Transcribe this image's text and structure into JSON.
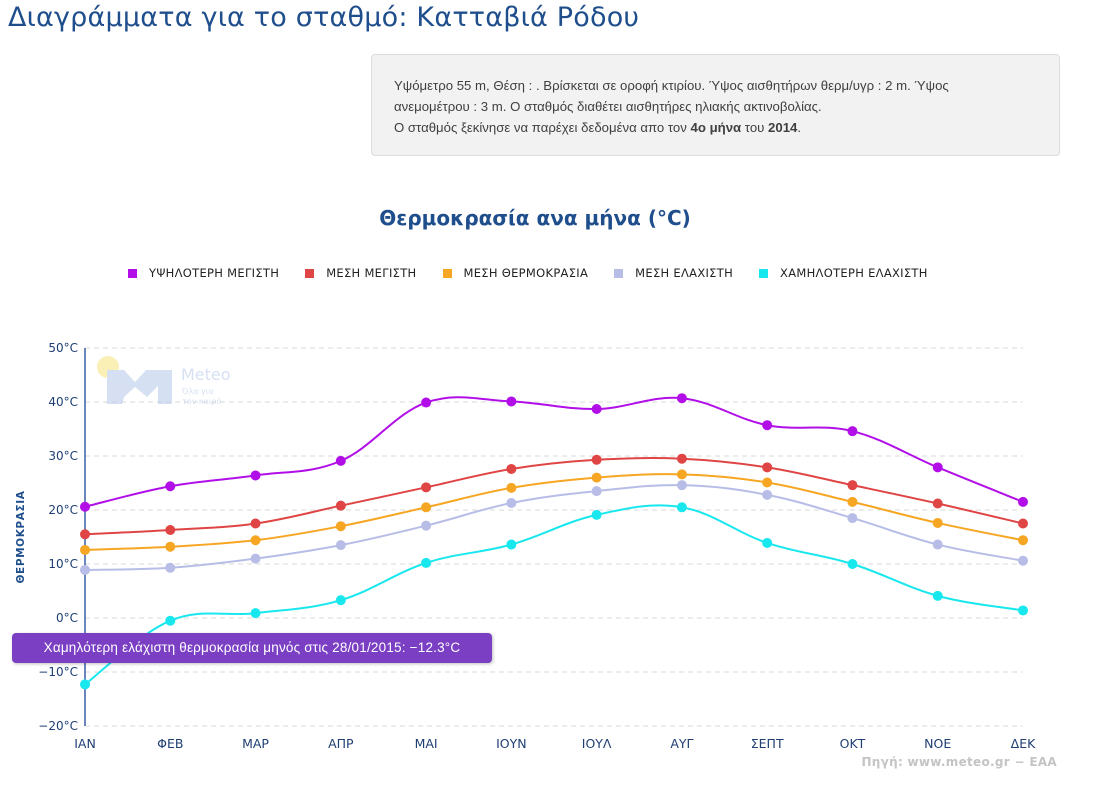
{
  "page": {
    "title": "Διαγράμματα για το σταθμό: Κατταβιά Ρόδου"
  },
  "info": {
    "line1": "Υψόμετρο 55 m, Θέση : . Βρίσκεται σε οροφή κτιρίου. Ύψος αισθητήρων θερμ/υγρ : 2 m. Ύψος",
    "line2": "ανεμομέτρου : 3 m. Ο σταθμός διαθέτει αισθητήρες ηλιακής ακτινοβολίας.",
    "line3_prefix": "Ο σταθμός ξεκίνησε να παρέχει δεδομένα απο τον ",
    "line3_month": "4ο μήνα",
    "line3_mid": " του ",
    "line3_year": "2014",
    "line3_suffix": "."
  },
  "logo": {
    "name": "Meteo",
    "tagline_1": "Όλα για",
    "tagline_2": "τον καιρό"
  },
  "tooltip": {
    "text": "Χαμηλότερη ελάχιστη θερμοκρασία μηνός στις 28/01/2015: −12.3°C"
  },
  "source": "Πηγή: www.meteo.gr − ΕΑΑ",
  "chart_data": {
    "type": "line",
    "title": "Θερμοκρασία ανα μήνα (°C)",
    "xlabel": "",
    "ylabel": "ΘΕΡΜΟΚΡΑΣΙΑ",
    "ylim": [
      -20,
      50
    ],
    "yticks": [
      -20,
      -10,
      0,
      10,
      20,
      30,
      40,
      50
    ],
    "y_unit": "°C",
    "grid": true,
    "legend_position": "top",
    "categories": [
      "ΙΑΝ",
      "ΦΕΒ",
      "ΜΑΡ",
      "ΑΠΡ",
      "ΜΑΙ",
      "ΙΟΥΝ",
      "ΙΟΥΛ",
      "ΑΥΓ",
      "ΣΕΠΤ",
      "ΟΚΤ",
      "ΝΟΕ",
      "ΔΕΚ"
    ],
    "series": [
      {
        "name": "ΥΨΗΛΟΤΕΡΗ ΜΕΓΙΣΤΗ",
        "color": "#b20fe8",
        "values": [
          20.6,
          24.4,
          26.4,
          29.1,
          39.9,
          40.1,
          38.7,
          40.7,
          35.7,
          34.6,
          27.9,
          21.5
        ]
      },
      {
        "name": "ΜΕΣΗ ΜΕΓΙΣΤΗ",
        "color": "#e04545",
        "values": [
          15.5,
          16.3,
          17.5,
          20.8,
          24.2,
          27.6,
          29.3,
          29.5,
          27.9,
          24.6,
          21.2,
          17.5
        ]
      },
      {
        "name": "ΜΕΣΗ ΘΕΡΜΟΚΡΑΣΙΑ",
        "color": "#f6a623",
        "values": [
          12.6,
          13.2,
          14.4,
          17.0,
          20.5,
          24.1,
          26.0,
          26.6,
          25.1,
          21.5,
          17.6,
          14.4
        ]
      },
      {
        "name": "ΜΕΣΗ ΕΛΑΧΙΣΤΗ",
        "color": "#b7bde6",
        "values": [
          8.9,
          9.3,
          11.0,
          13.5,
          17.1,
          21.3,
          23.5,
          24.6,
          22.8,
          18.5,
          13.6,
          10.6
        ]
      },
      {
        "name": "ΧΑΜΗΛΟΤΕΡΗ ΕΛΑΧΙΣΤΗ",
        "color": "#18e8ee",
        "values": [
          -12.3,
          -0.5,
          0.9,
          3.3,
          10.2,
          13.6,
          19.1,
          20.5,
          13.9,
          10.0,
          4.1,
          1.4
        ]
      }
    ]
  }
}
